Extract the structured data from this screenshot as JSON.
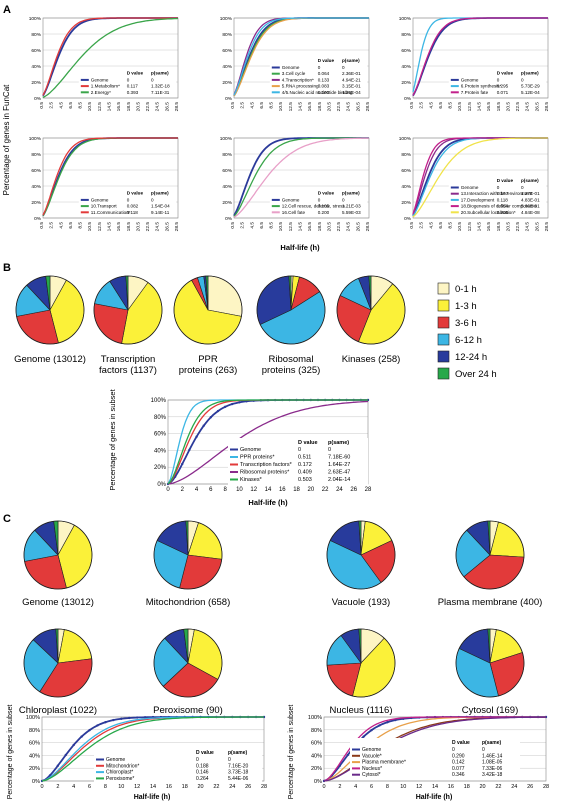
{
  "panel_labels": {
    "a": "A",
    "b": "B",
    "c": "C"
  },
  "colors": {
    "bin0": "#fdf5c4",
    "bin1": "#fbf139",
    "bin2": "#e23a3a",
    "bin3": "#3cb6e4",
    "bin4": "#283b9c",
    "bin5": "#27a84a",
    "genome": "#2b3a9a",
    "grid": "#c8c8c8"
  },
  "panel_a": {
    "ylabel": "Percentage of genes in FunCat",
    "xlabel": "Half-life (h)",
    "header_d": "D value",
    "header_p": "p(same)",
    "yticks": [
      "0%",
      "20%",
      "40%",
      "60%",
      "80%",
      "100%"
    ],
    "xticks": [
      "0.5",
      "2.5",
      "4.5",
      "6.5",
      "8.5",
      "10.5",
      "12.5",
      "14.5",
      "16.5",
      "18.5",
      "20.5",
      "22.5",
      "24.5",
      "26.5",
      "28.5"
    ]
  },
  "legend_b": {
    "title": "",
    "entries": [
      "0-1 h",
      "1-3 h",
      "3-6 h",
      "6-12 h",
      "12-24 h",
      "Over 24 h"
    ]
  },
  "pies_b": [
    {
      "label": "Genome (13012)"
    },
    {
      "label": "Transcription factors (1137)"
    },
    {
      "label": "PPR proteins (263)"
    },
    {
      "label": "Ribosomal proteins (325)"
    },
    {
      "label": "Kinases (258)"
    }
  ],
  "pies_c": [
    {
      "label": "Genome (13012)"
    },
    {
      "label": "Mitochondrion (658)"
    },
    {
      "label": "Vacuole (193)"
    },
    {
      "label": "Plasma membrane (400)"
    },
    {
      "label": "Chloroplast (1022)"
    },
    {
      "label": "Peroxisome (90)"
    },
    {
      "label": "Nucleus (1116)"
    },
    {
      "label": "Cytosol (169)"
    }
  ],
  "subset_chart": {
    "ylabel": "Percentage of genes in subset",
    "xlabel": "Half-life (h)",
    "header_d": "D value",
    "header_p": "p(same)",
    "yticks": [
      "0%",
      "20%",
      "40%",
      "60%",
      "80%",
      "100%"
    ],
    "xticks": [
      "0",
      "2",
      "4",
      "6",
      "8",
      "10",
      "12",
      "14",
      "16",
      "18",
      "20",
      "22",
      "24",
      "26",
      "28"
    ]
  },
  "chart_data": [
    {
      "type": "line",
      "name": "A1",
      "xlim": [
        0.5,
        28.5
      ],
      "ylim": [
        0,
        100
      ],
      "series": [
        {
          "name": "Genome",
          "color": "#2b3a9a",
          "d": "0",
          "p": "0",
          "k": 1.0
        },
        {
          "name": "1.Metabolism*",
          "color": "#e23a3a",
          "d": "0.117",
          "p": "1.32E-18",
          "k": 0.92
        },
        {
          "name": "2.Energy*",
          "color": "#3aa54a",
          "d": "0.393",
          "p": "7.11E-31",
          "k": 2.3
        }
      ]
    },
    {
      "type": "line",
      "name": "A2",
      "xlim": [
        0.5,
        28.5
      ],
      "ylim": [
        0,
        100
      ],
      "series": [
        {
          "name": "Genome",
          "color": "#2b3a9a",
          "d": "0",
          "p": "0",
          "k": 1.0
        },
        {
          "name": "3.Cell cycle",
          "color": "#3aa54a",
          "d": "0.064",
          "p": "2.36E-01",
          "k": 1.05
        },
        {
          "name": "4.Transcription*",
          "color": "#8a2b8c",
          "d": "0.133",
          "p": "4.94E-21",
          "k": 0.82
        },
        {
          "name": "5.RNA processing",
          "color": "#e8a04a",
          "d": "0.083",
          "p": "3.15E-01",
          "k": 1.1
        },
        {
          "name": "4/5.Nucleic acid nucleotide binding",
          "color": "#3cb6e4",
          "d": "0.100",
          "p": "4.26E-04",
          "k": 0.9
        }
      ]
    },
    {
      "type": "line",
      "name": "A3",
      "xlim": [
        0.5,
        28.5
      ],
      "ylim": [
        0,
        100
      ],
      "series": [
        {
          "name": "Genome",
          "color": "#2b3a9a",
          "d": "0",
          "p": "0",
          "k": 1.0
        },
        {
          "name": "6.Protein synthesis*",
          "color": "#3cb6e4",
          "d": "0.295",
          "p": "5.73E-29",
          "k": 0.55
        },
        {
          "name": "7.Protein fate",
          "color": "#c2208a",
          "d": "0.071",
          "p": "5.12E-04",
          "k": 0.95
        }
      ]
    },
    {
      "type": "line",
      "name": "A4",
      "xlim": [
        0.5,
        28.5
      ],
      "ylim": [
        0,
        100
      ],
      "series": [
        {
          "name": "Genome",
          "color": "#2b3a9a",
          "d": "0",
          "p": "0",
          "k": 1.0
        },
        {
          "name": "10.Transport",
          "color": "#3aa54a",
          "d": "0.082",
          "p": "1.54E-04",
          "k": 1.05
        },
        {
          "name": "11.Communication*",
          "color": "#e23a3a",
          "d": "0.118",
          "p": "9.14E-11",
          "k": 0.9
        }
      ]
    },
    {
      "type": "line",
      "name": "A5",
      "xlim": [
        0.5,
        28.5
      ],
      "ylim": [
        0,
        100
      ],
      "series": [
        {
          "name": "Genome",
          "color": "#2b3a9a",
          "d": "0",
          "p": "0",
          "k": 1.0
        },
        {
          "name": "12.Cell rescue, defense, stress",
          "color": "#3aa54a",
          "d": "0.105",
          "p": "1.21E-03",
          "k": 1.3
        },
        {
          "name": "16.Cell fate",
          "color": "#e8a0c8",
          "d": "0.200",
          "p": "5.59E-03",
          "k": 2.0
        }
      ]
    },
    {
      "type": "line",
      "name": "A6",
      "xlim": [
        0.5,
        28.5
      ],
      "ylim": [
        0,
        100
      ],
      "series": [
        {
          "name": "Genome",
          "color": "#2b3a9a",
          "d": "0",
          "p": "0",
          "k": 1.0
        },
        {
          "name": "13.Interaction with the environment",
          "color": "#8a2b8c",
          "d": "0.157",
          "p": "1.27E-01",
          "k": 0.8
        },
        {
          "name": "17.Development",
          "color": "#3cb6e4",
          "d": "0.118",
          "p": "4.83E-01",
          "k": 1.1
        },
        {
          "name": "18.Biogenesis of cellular components",
          "color": "#c2208a",
          "d": "0.654",
          "p": "5.66E-01",
          "k": 0.7
        },
        {
          "name": "20.Subcellular localisation*",
          "color": "#f0e34a",
          "d": "0.205",
          "p": "4.84E-08",
          "k": 1.6
        }
      ]
    },
    {
      "type": "pie",
      "name": "B-pies",
      "categories": [
        "0-1 h",
        "1-3 h",
        "3-6 h",
        "6-12 h",
        "12-24 h",
        "Over 24 h"
      ],
      "series": [
        {
          "name": "Genome (13012)",
          "values": [
            8,
            38,
            26,
            16,
            10,
            2
          ]
        },
        {
          "name": "Transcription factors (1137)",
          "values": [
            10,
            43,
            25,
            13,
            8,
            1
          ]
        },
        {
          "name": "PPR proteins (263)",
          "values": [
            28,
            64,
            3,
            3,
            1,
            1
          ]
        },
        {
          "name": "Ribosomal proteins (325)",
          "values": [
            1,
            3,
            12,
            52,
            31,
            1
          ]
        },
        {
          "name": "Kinases (258)",
          "values": [
            11,
            45,
            26,
            12,
            5,
            1
          ]
        }
      ]
    },
    {
      "type": "line",
      "name": "B-subset",
      "xlim": [
        0,
        28
      ],
      "ylim": [
        0,
        100
      ],
      "series": [
        {
          "name": "Genome",
          "color": "#2b3a9a",
          "d": "0",
          "p": "0",
          "k": 1.0
        },
        {
          "name": "PPR proteins*",
          "color": "#3cb6e4",
          "d": "0.511",
          "p": "7.18E-60",
          "k": 0.45
        },
        {
          "name": "Transcription factors*",
          "color": "#e23a3a",
          "d": "0.172",
          "p": "1.64E-27",
          "k": 0.8
        },
        {
          "name": "Ribosomal proteins*",
          "color": "#8a2b8c",
          "d": "0.409",
          "p": "2.63E-47",
          "k": 2.6
        },
        {
          "name": "Kinases*",
          "color": "#27a84a",
          "d": "0.503",
          "p": "2.04E-14",
          "k": 0.7
        }
      ]
    },
    {
      "type": "pie",
      "name": "C-pies",
      "categories": [
        "0-1 h",
        "1-3 h",
        "3-6 h",
        "6-12 h",
        "12-24 h",
        "Over 24 h"
      ],
      "series": [
        {
          "name": "Genome (13012)",
          "values": [
            8,
            38,
            26,
            16,
            10,
            2
          ]
        },
        {
          "name": "Mitochondrion (658)",
          "values": [
            5,
            22,
            27,
            28,
            17,
            1
          ]
        },
        {
          "name": "Vacuole (193)",
          "values": [
            2,
            16,
            22,
            42,
            17,
            1
          ]
        },
        {
          "name": "Plasma membrane (400)",
          "values": [
            4,
            22,
            38,
            24,
            11,
            1
          ]
        },
        {
          "name": "Chloroplast (1022)",
          "values": [
            3,
            20,
            36,
            28,
            12,
            1
          ]
        },
        {
          "name": "Peroxisome (90)",
          "values": [
            3,
            30,
            30,
            25,
            10,
            2
          ]
        },
        {
          "name": "Nucleus (1116)",
          "values": [
            12,
            42,
            20,
            16,
            9,
            1
          ]
        },
        {
          "name": "Cytosol (169)",
          "values": [
            3,
            17,
            26,
            36,
            17,
            1
          ]
        }
      ]
    },
    {
      "type": "line",
      "name": "C-left",
      "xlim": [
        0,
        28
      ],
      "ylim": [
        0,
        100
      ],
      "series": [
        {
          "name": "Genome",
          "color": "#2b3a9a",
          "d": "0",
          "p": "0",
          "k": 1.0
        },
        {
          "name": "Mitochondrion*",
          "color": "#e23a3a",
          "d": "0.188",
          "p": "7.16E-20",
          "k": 1.4
        },
        {
          "name": "Chloroplast*",
          "color": "#3cb6e4",
          "d": "0.146",
          "p": "3.73E-18",
          "k": 1.3
        },
        {
          "name": "Peroxisome*",
          "color": "#27a84a",
          "d": "0.264",
          "p": "5.44E-06",
          "k": 1.6
        }
      ]
    },
    {
      "type": "line",
      "name": "C-right",
      "xlim": [
        0,
        28
      ],
      "ylim": [
        0,
        100
      ],
      "series": [
        {
          "name": "Genome",
          "color": "#2b3a9a",
          "d": "0",
          "p": "0",
          "k": 1.0
        },
        {
          "name": "Vacuole*",
          "color": "#8b3a1a",
          "d": "0.290",
          "p": "1.46E-14",
          "k": 1.9
        },
        {
          "name": "Plasma membrane*",
          "color": "#e8a04a",
          "d": "0.142",
          "p": "1.08E-05",
          "k": 1.4
        },
        {
          "name": "Nucleus*",
          "color": "#c2208a",
          "d": "0.077",
          "p": "7.33E-06",
          "k": 0.9
        },
        {
          "name": "Cytosol*",
          "color": "#6a2a8a",
          "d": "0.346",
          "p": "3.42E-18",
          "k": 2.0
        }
      ]
    }
  ]
}
